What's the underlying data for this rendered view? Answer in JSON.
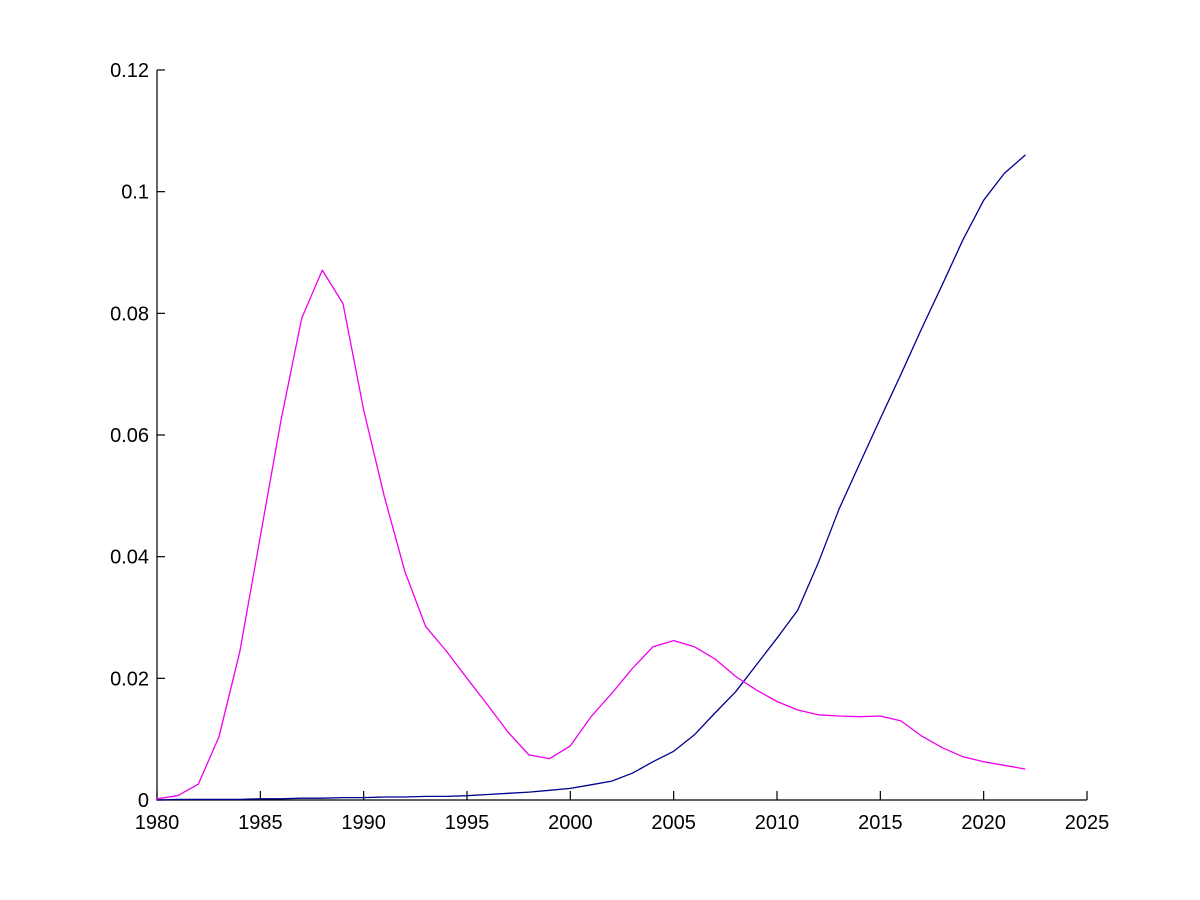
{
  "figure": {
    "background_color": "#ffffff",
    "axis_color": "#000000",
    "tick_label_color": "#000000"
  },
  "chart_data": {
    "type": "line",
    "title": "",
    "xlabel": "",
    "ylabel": "",
    "grid": false,
    "legend": null,
    "xlim": [
      1980,
      2025
    ],
    "ylim": [
      0,
      0.12
    ],
    "x_ticks": [
      1980,
      1985,
      1990,
      1995,
      2000,
      2005,
      2010,
      2015,
      2020,
      2025
    ],
    "x_tick_labels": [
      "1980",
      "1985",
      "1990",
      "1995",
      "2000",
      "2005",
      "2010",
      "2015",
      "2020",
      "2025"
    ],
    "y_ticks": [
      0,
      0.02,
      0.04,
      0.06,
      0.08,
      0.1,
      0.12
    ],
    "y_tick_labels": [
      "0",
      "0.02",
      "0.04",
      "0.06",
      "0.08",
      "0.1",
      "0.12"
    ],
    "x": [
      1980,
      1981,
      1982,
      1983,
      1984,
      1985,
      1986,
      1987,
      1988,
      1989,
      1990,
      1991,
      1992,
      1993,
      1994,
      1995,
      1996,
      1997,
      1998,
      1999,
      2000,
      2001,
      2002,
      2003,
      2004,
      2005,
      2006,
      2007,
      2008,
      2009,
      2010,
      2011,
      2012,
      2013,
      2014,
      2015,
      2016,
      2017,
      2018,
      2019,
      2020,
      2021,
      2022
    ],
    "series": [
      {
        "name": "blue-series",
        "color": "#000090",
        "values": [
          0.0,
          0.0001,
          0.0001,
          0.0001,
          0.0001,
          0.0002,
          0.0002,
          0.0003,
          0.0003,
          0.0004,
          0.0004,
          0.0005,
          0.0005,
          0.0006,
          0.0006,
          0.0007,
          0.0009,
          0.0011,
          0.0013,
          0.0016,
          0.0019,
          0.0025,
          0.0031,
          0.0044,
          0.0063,
          0.008,
          0.0107,
          0.0143,
          0.0178,
          0.0222,
          0.0266,
          0.0312,
          0.039,
          0.0478,
          0.0553,
          0.0627,
          0.07,
          0.0775,
          0.0847,
          0.0921,
          0.0986,
          0.103,
          0.106
        ]
      },
      {
        "name": "magenta-series",
        "color": "#ee00ee",
        "values": [
          0.0002,
          0.0007,
          0.0026,
          0.0104,
          0.0243,
          0.0433,
          0.0624,
          0.0792,
          0.0871,
          0.0816,
          0.0641,
          0.0499,
          0.0375,
          0.0285,
          0.0245,
          0.02,
          0.0156,
          0.0111,
          0.0074,
          0.0068,
          0.0089,
          0.0137,
          0.0175,
          0.0216,
          0.0252,
          0.0262,
          0.0252,
          0.0232,
          0.0203,
          0.0181,
          0.0162,
          0.0148,
          0.014,
          0.0138,
          0.0137,
          0.0138,
          0.013,
          0.0105,
          0.0086,
          0.0071,
          0.0063,
          0.0057,
          0.0051
        ]
      }
    ]
  }
}
